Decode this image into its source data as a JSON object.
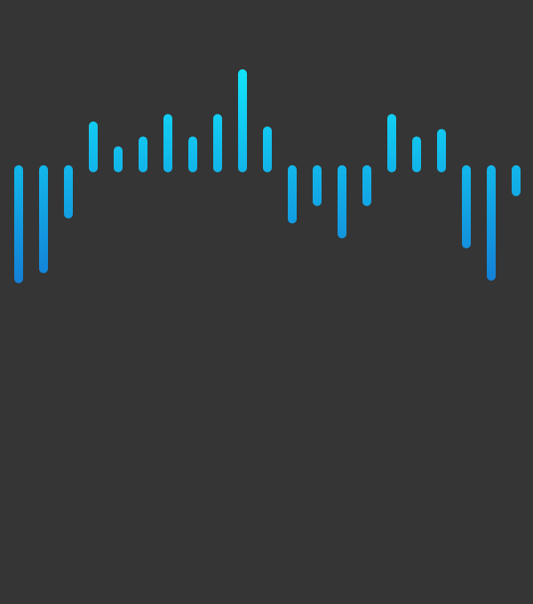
{
  "chart_data": {
    "type": "bar",
    "style": "vertical pill bars diverging from a baseline, with gradient fill",
    "baseline": 0,
    "ylim": [
      -4.6,
      4.0
    ],
    "grid": false,
    "legend": "none",
    "values": [
      -4.6,
      -4.2,
      -2.0,
      1.9,
      0.9,
      1.3,
      2.2,
      1.3,
      2.2,
      4.0,
      1.7,
      -2.2,
      -1.5,
      -2.8,
      -1.5,
      2.2,
      1.3,
      1.6,
      -3.2,
      -4.5,
      -1.1
    ],
    "colors": {
      "background": "#353535",
      "bar_top": "#12E4FA",
      "bar_bottom": "#1380D7"
    }
  }
}
